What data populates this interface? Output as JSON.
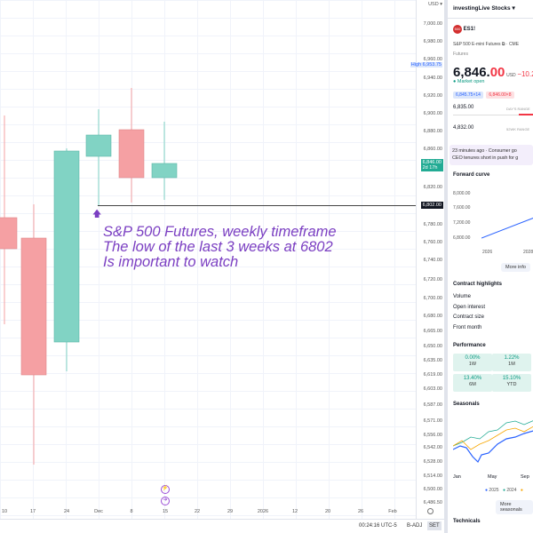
{
  "chart": {
    "annotation": [
      "S&P 500 Futures, weekly timeframe",
      "The low of the last 3 weeks at 6802",
      "Is important to watch"
    ],
    "currency": "USD",
    "price_ticks": [
      "7,000.00",
      "6,980.00",
      "6,960.00",
      "6,940.00",
      "6,920.00",
      "6,900.00",
      "6,880.00",
      "6,860.00",
      "6,820.00",
      "6,780.00",
      "6,760.00",
      "6,740.00",
      "6,720.00",
      "6,700.00",
      "6,680.00",
      "6,665.00",
      "6,650.00",
      "6,635.00",
      "6,619.00",
      "6,603.00",
      "6,587.00",
      "6,571.00",
      "6,556.00",
      "6,542.00",
      "6,528.00",
      "6,514.00",
      "6,500.00",
      "6,486.50"
    ],
    "high_label": "High",
    "high_value": "6,953.75",
    "last_price": "6,846.00",
    "last_countdown": "2d 17h",
    "line_price": "6,802.00",
    "date_ticks": [
      "10",
      "17",
      "24",
      "Dec",
      "8",
      "15",
      "22",
      "29",
      "2026",
      "12",
      "20",
      "26",
      "Feb"
    ],
    "up_color": "#81d3c4",
    "down_color": "#f5a0a3",
    "annotation_color": "#7b3fc2"
  },
  "bottom": {
    "time": "00:24:16 UTC-5",
    "badj": "B-ADJ",
    "set": "SET"
  },
  "sidebar": {
    "watchlist": "investingLive Stocks ▾",
    "logo": "500",
    "symbol": "ES1!",
    "name": "S&P 500 E-mini Futures ⧉ · CME",
    "type": "Futures",
    "price_int": "6,846.",
    "price_dec": "00",
    "currency": "USD",
    "change": "−10.2",
    "status": "Market open",
    "bid": "6,845.75×14",
    "ask": "6,846.00×8",
    "day_low": "6,835.00",
    "day_range": "DAY'S RANGE",
    "wk_low": "4,832.00",
    "wk_range": "52WK RANGE",
    "news": [
      "23 minutes ago · Consumer go",
      "CEO tenures short in push for g"
    ],
    "forward": {
      "title": "Forward curve",
      "y": [
        "8,000.00",
        "7,600.00",
        "7,200.00",
        "6,800.00"
      ],
      "x": [
        "2026",
        "2028"
      ],
      "more": "More info"
    },
    "highlights": {
      "title": "Contract highlights",
      "items": [
        "Volume",
        "Open interest",
        "Contract size",
        "Front month"
      ]
    },
    "performance": {
      "title": "Performance",
      "tiles": [
        {
          "v": "0.00%",
          "l": "1W"
        },
        {
          "v": "1.22%",
          "l": "1M"
        },
        {
          "v": "13.40%",
          "l": "6M"
        },
        {
          "v": "15.10%",
          "l": "YTD"
        }
      ]
    },
    "seasonals": {
      "title": "Seasonals",
      "x": [
        "Jan",
        "May",
        "Sep"
      ],
      "legend": [
        {
          "l": "2025",
          "c": "#2962ff"
        },
        {
          "l": "2024",
          "c": "#22ab94"
        },
        {
          "l": "",
          "c": "#f7a600"
        }
      ],
      "more": "More seasonals"
    },
    "technicals": "Technicals"
  }
}
